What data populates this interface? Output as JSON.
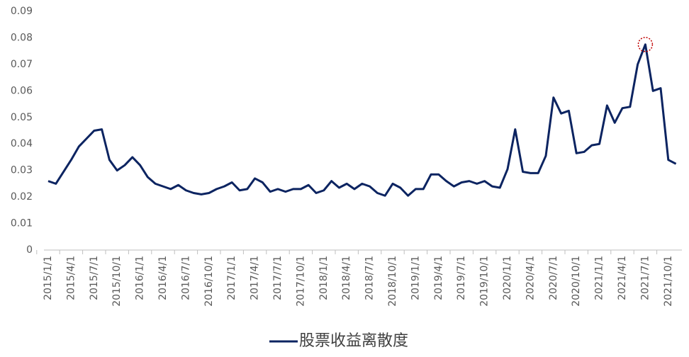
{
  "chart_data": {
    "type": "line",
    "categories": [
      "2015/1/1",
      null,
      null,
      "2015/4/1",
      null,
      null,
      "2015/7/1",
      null,
      null,
      "2015/10/1",
      null,
      null,
      "2016/1/1",
      null,
      null,
      "2016/4/1",
      null,
      null,
      "2016/7/1",
      null,
      null,
      "2016/10/1",
      null,
      null,
      "2017/1/1",
      null,
      null,
      "2017/4/1",
      null,
      null,
      "2017/7/1",
      null,
      null,
      "2017/10/1",
      null,
      null,
      "2018/1/1",
      null,
      null,
      "2018/4/1",
      null,
      null,
      "2018/7/1",
      null,
      null,
      "2018/10/1",
      null,
      null,
      "2019/1/1",
      null,
      null,
      "2019/4/1",
      null,
      null,
      "2019/7/1",
      null,
      null,
      "2019/10/1",
      null,
      null,
      "2020/1/1",
      null,
      null,
      "2020/4/1",
      null,
      null,
      "2020/7/1",
      null,
      null,
      "2020/10/1",
      null,
      null,
      "2021/1/1",
      null,
      null,
      "2021/4/1",
      null,
      null,
      "2021/7/1",
      null,
      null,
      "2021/10/1",
      null
    ],
    "series": [
      {
        "name": "股票收益离散度",
        "color": "#0c2461",
        "values": [
          0.026,
          0.025,
          0.0295,
          0.034,
          0.039,
          0.042,
          0.045,
          0.0455,
          0.034,
          0.03,
          0.032,
          0.035,
          0.032,
          0.0275,
          0.025,
          0.024,
          0.023,
          0.0245,
          0.0225,
          0.0215,
          0.021,
          0.0215,
          0.023,
          0.024,
          0.0255,
          0.0225,
          0.023,
          0.027,
          0.0255,
          0.022,
          0.023,
          0.022,
          0.023,
          0.023,
          0.0245,
          0.0215,
          0.0225,
          0.026,
          0.0235,
          0.025,
          0.023,
          0.025,
          0.024,
          0.0215,
          0.0205,
          0.025,
          0.0235,
          0.0205,
          0.023,
          0.023,
          0.0285,
          0.0285,
          0.026,
          0.024,
          0.0255,
          0.026,
          0.025,
          0.026,
          0.024,
          0.0235,
          0.0305,
          0.0455,
          0.0295,
          0.029,
          0.029,
          0.0355,
          0.0575,
          0.0515,
          0.0525,
          0.0365,
          0.037,
          0.0395,
          0.04,
          0.0545,
          0.048,
          0.0535,
          0.054,
          0.07,
          0.0775,
          0.06,
          0.061,
          0.034,
          0.0325
        ]
      }
    ],
    "ylim": [
      0,
      0.09
    ],
    "yticks": [
      0,
      0.01,
      0.02,
      0.03,
      0.04,
      0.05,
      0.06,
      0.07,
      0.08,
      0.09
    ],
    "legend": "bottom"
  }
}
